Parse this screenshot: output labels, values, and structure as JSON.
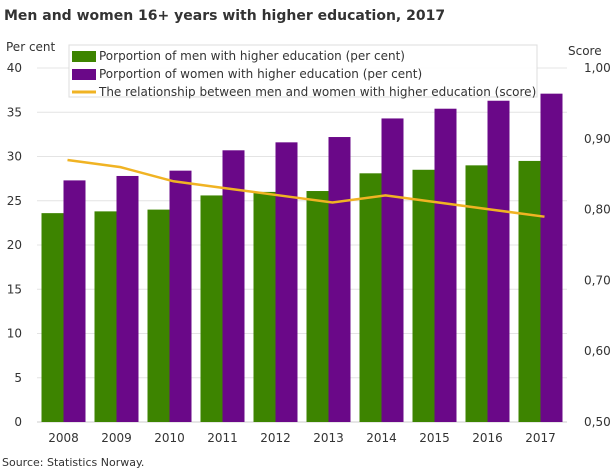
{
  "chart_data": {
    "type": "bar",
    "title": "Men and women 16+ years with higher education, 2017",
    "ylabel_left": "Per cent",
    "ylabel_right": "Score",
    "source": "Source: Statistics Norway.",
    "categories": [
      "2008",
      "2009",
      "2010",
      "2011",
      "2012",
      "2013",
      "2014",
      "2015",
      "2016",
      "2017"
    ],
    "ylim_left": [
      0,
      40
    ],
    "yticks_left": [
      "0",
      "5",
      "10",
      "15",
      "20",
      "25",
      "30",
      "35",
      "40"
    ],
    "ylim_right": [
      0.5,
      1.0
    ],
    "yticks_right": [
      "0,50",
      "0,60",
      "0,70",
      "0,80",
      "0,90",
      "1,00"
    ],
    "grid": true,
    "legend_placement": "top",
    "series": [
      {
        "name": "Porportion of men with higher education (per cent)",
        "type": "bar",
        "axis": "left",
        "color": "#3d8400",
        "values": [
          23.6,
          23.8,
          24.0,
          25.6,
          26.0,
          26.1,
          28.1,
          28.5,
          29.0,
          29.5
        ]
      },
      {
        "name": "Porportion of women with higher education (per cent)",
        "type": "bar",
        "axis": "left",
        "color": "#6a0888",
        "values": [
          27.3,
          27.8,
          28.4,
          30.7,
          31.6,
          32.2,
          34.3,
          35.4,
          36.3,
          37.1
        ]
      },
      {
        "name": "The relationship between men and women with higher education (score)",
        "type": "line",
        "axis": "right",
        "color": "#f0b323",
        "values": [
          0.87,
          0.86,
          0.84,
          0.83,
          0.82,
          0.81,
          0.82,
          0.81,
          0.8,
          0.79
        ]
      }
    ]
  }
}
